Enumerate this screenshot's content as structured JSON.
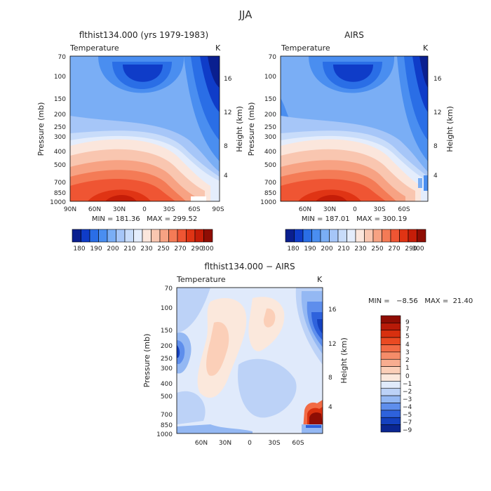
{
  "figure": {
    "title": "JJA"
  },
  "chart_data": [
    {
      "type": "heatmap",
      "title": "flthist134.000 (yrs 1979-1983)",
      "field": "Temperature",
      "units": "K",
      "ylabel": "Pressure (mb)",
      "y2label": "Height (km)",
      "x_ticks": [
        "90N",
        "60N",
        "30N",
        "0",
        "30S",
        "60S",
        "90S"
      ],
      "y_ticks": [
        "70",
        "100",
        "150",
        "200",
        "250",
        "300",
        "400",
        "500",
        "700",
        "850",
        "1000"
      ],
      "y2_ticks": [
        "16",
        "12",
        "8",
        "4"
      ],
      "stats": "MIN = 181.36   MAX = 299.52",
      "colorbar": {
        "orientation": "horizontal",
        "labels": [
          "180",
          "190",
          "200",
          "210",
          "230",
          "250",
          "270",
          "290",
          "300"
        ],
        "colors": [
          "#0a1f8f",
          "#0f3cc8",
          "#2a6ee6",
          "#4a8ef0",
          "#7aaef5",
          "#a6c6f8",
          "#c8dcfa",
          "#e4edfc",
          "#fbe6dc",
          "#f9c6b0",
          "#f7a283",
          "#f47b56",
          "#ef5533",
          "#e03414",
          "#c51d08",
          "#8f0d04"
        ]
      }
    },
    {
      "type": "heatmap",
      "title": "AIRS",
      "field": "Temperature",
      "units": "K",
      "ylabel": "Pressure (mb)",
      "y2label": "Height (km)",
      "x_ticks": [
        "60N",
        "30N",
        "0",
        "30S",
        "60S"
      ],
      "y_ticks": [
        "70",
        "100",
        "150",
        "200",
        "250",
        "300",
        "400",
        "500",
        "700",
        "850",
        "1000"
      ],
      "y2_ticks": [
        "16",
        "12",
        "8",
        "4"
      ],
      "stats": "MIN = 187.01   MAX = 300.19",
      "colorbar": {
        "orientation": "horizontal",
        "labels": [
          "180",
          "190",
          "200",
          "210",
          "230",
          "250",
          "270",
          "290",
          "300"
        ],
        "colors": [
          "#0a1f8f",
          "#0f3cc8",
          "#2a6ee6",
          "#4a8ef0",
          "#7aaef5",
          "#a6c6f8",
          "#c8dcfa",
          "#e4edfc",
          "#fbe6dc",
          "#f9c6b0",
          "#f7a283",
          "#f47b56",
          "#ef5533",
          "#e03414",
          "#c51d08",
          "#8f0d04"
        ]
      }
    },
    {
      "type": "heatmap",
      "title": "flthist134.000 − AIRS",
      "field": "Temperature",
      "units": "K",
      "ylabel": "Pressure (mb)",
      "y2label": "Height (km)",
      "x_ticks": [
        "60N",
        "30N",
        "0",
        "30S",
        "60S"
      ],
      "y_ticks": [
        "70",
        "100",
        "150",
        "200",
        "250",
        "300",
        "400",
        "500",
        "700",
        "850",
        "1000"
      ],
      "y2_ticks": [
        "16",
        "12",
        "8",
        "4"
      ],
      "stats": "MIN =   −8.56   MAX =  21.40",
      "colorbar": {
        "orientation": "vertical",
        "labels": [
          "9",
          "7",
          "5",
          "4",
          "3",
          "2",
          "1",
          "0",
          "−1",
          "−2",
          "−3",
          "−4",
          "−5",
          "−7",
          "−9"
        ],
        "colors": [
          "#8f0d04",
          "#b81a08",
          "#d8300f",
          "#ea4a22",
          "#f26b45",
          "#f58c69",
          "#f8ad90",
          "#fbcfb8",
          "#fbe8dc",
          "#e0eafb",
          "#bcd2f7",
          "#94b8f3",
          "#5e8eec",
          "#2e62dc",
          "#1441bf",
          "#0a2691"
        ]
      }
    }
  ]
}
